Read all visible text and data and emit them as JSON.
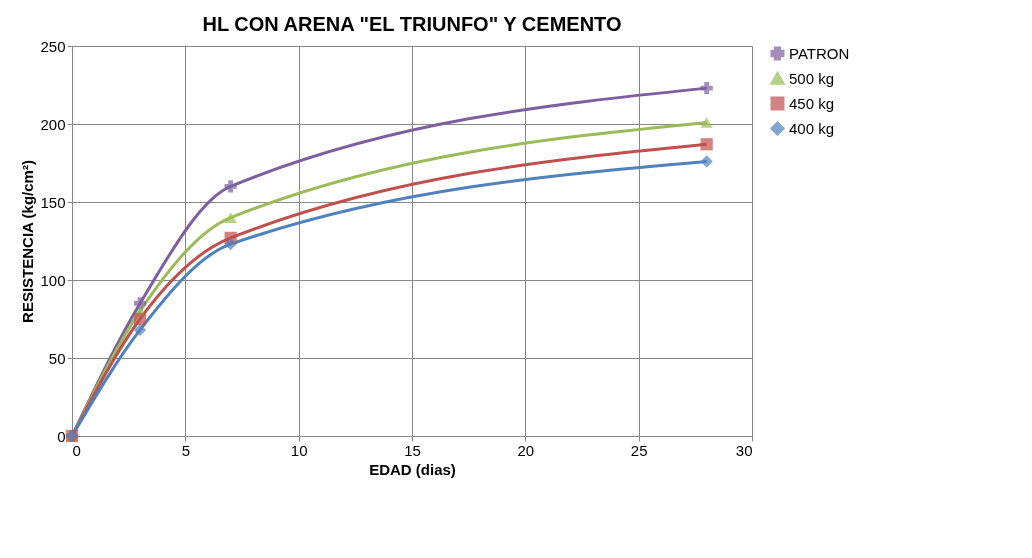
{
  "chart_data": {
    "type": "line",
    "title": "HL CON ARENA \"EL TRIUNFO\" Y CEMENTO",
    "xlabel": "EDAD (dias)",
    "ylabel": "RESISTENCIA (kg/cm²)",
    "x": [
      0,
      3,
      7,
      28
    ],
    "series": [
      {
        "name": "PATRON",
        "color": "#7d5fa0",
        "marker": "cross",
        "values": [
          0,
          85,
          160,
          223
        ]
      },
      {
        "name": "500 kg",
        "color": "#9bbb59",
        "marker": "triangle",
        "values": [
          0,
          80,
          140,
          201
        ]
      },
      {
        "name": "450 kg",
        "color": "#c0504d",
        "marker": "square",
        "values": [
          0,
          75,
          127,
          187
        ]
      },
      {
        "name": "400 kg",
        "color": "#4f81bd",
        "marker": "diamond",
        "values": [
          0,
          68,
          123,
          176
        ]
      }
    ],
    "xlim": [
      0,
      30
    ],
    "xticks": [
      0,
      5,
      10,
      15,
      20,
      25,
      30
    ],
    "ylim": [
      0,
      250
    ],
    "yticks": [
      0,
      50,
      100,
      150,
      200,
      250
    ],
    "line_style": "solid",
    "grid": true,
    "legend": "right"
  }
}
